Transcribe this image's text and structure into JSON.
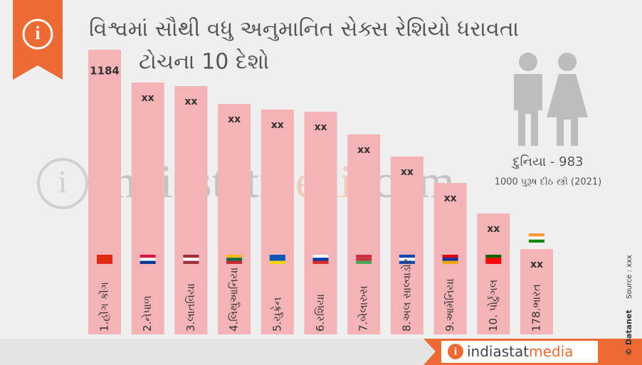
{
  "chart_data": {
    "type": "bar",
    "title_line1": "વિશ્વમાં સૌથી વધુ અનુમાનિત સેક્સ રેશિયો ધરાવતા",
    "title_line2": "ટોચના 10 દેશો",
    "categories": [
      "1.હોંગ કોંગ",
      "2.નેપાળ",
      "3.લાતવિયા",
      "4.લિથુઆનિયા",
      "5.યુક્રેન",
      "6.રશિયા",
      "7.બેલારુસ",
      "8.અલ સાલ્વાડોર",
      "9.આર્મેનિયા",
      "10. પોર્ટુગલ",
      "178.ભારત"
    ],
    "values": [
      1184,
      1048,
      1033,
      959,
      935,
      926,
      832,
      740,
      630,
      503,
      355
    ],
    "value_labels": [
      "1184",
      "xx",
      "xx",
      "xx",
      "xx",
      "xx",
      "xx",
      "xx",
      "xx",
      "xx",
      "xx"
    ],
    "color": "#f4b3b6",
    "world_label": "દુનિયા - 983",
    "world_note": "1000 પુરૂષ દીઠ સ્ત્રી (2021)",
    "watermark_a": "indiastat",
    "watermark_b": "media",
    "watermark_c": "com",
    "footer_brand_a": "indiastat",
    "footer_brand_b": "media",
    "copyright": "© Datanet",
    "source": "Source : xxx"
  }
}
